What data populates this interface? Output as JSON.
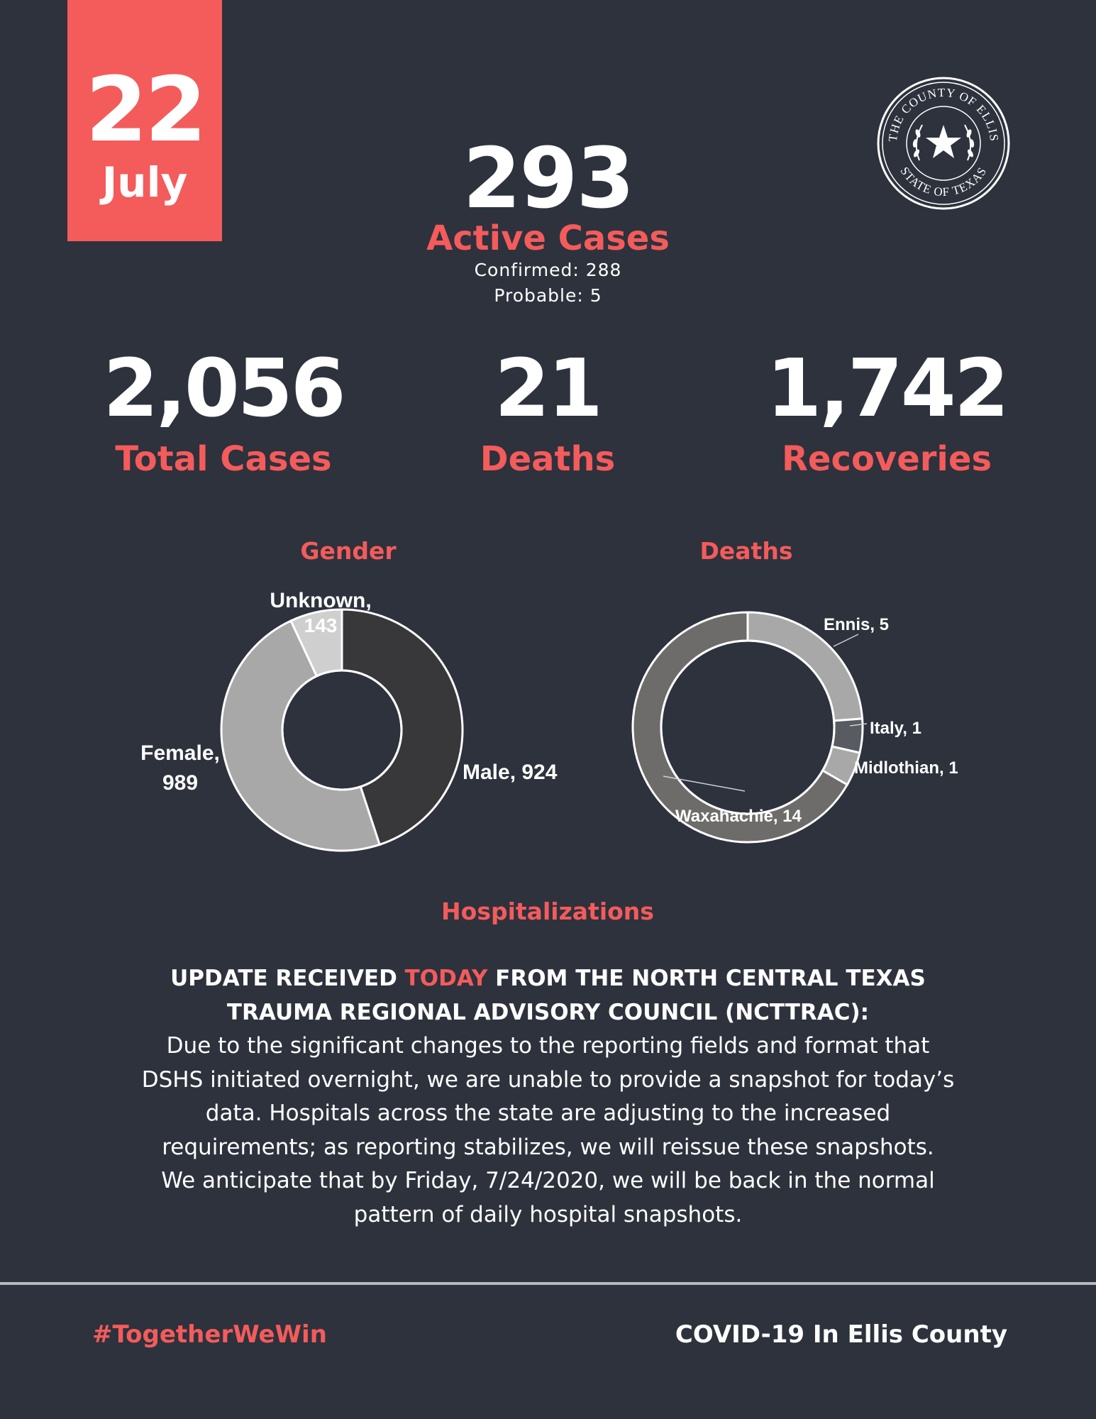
{
  "date": {
    "day": "22",
    "month": "July"
  },
  "seal": {
    "top_text": "THE COUNTY OF ELLIS",
    "bottom_text": "STATE OF TEXAS"
  },
  "active": {
    "number": "293",
    "label": "Active Cases",
    "confirmed": "Confirmed: 288",
    "probable": "Probable: 5"
  },
  "stats": [
    {
      "number": "2,056",
      "label": "Total Cases"
    },
    {
      "number": "21",
      "label": "Deaths"
    },
    {
      "number": "1,742",
      "label": "Recoveries"
    }
  ],
  "chart_data": [
    {
      "type": "pie",
      "title": "Gender",
      "categories": [
        "Male",
        "Female",
        "Unknown"
      ],
      "values": [
        924,
        989,
        143
      ],
      "labels": [
        {
          "name": "Male,",
          "value": "924",
          "text": "Male, 924"
        },
        {
          "name": "Female,",
          "value": "989"
        },
        {
          "name": "Unknown,",
          "value": "143"
        }
      ],
      "colors": [
        "#38383a",
        "#a9a8a8",
        "#cfcfd0"
      ],
      "donut": true
    },
    {
      "type": "pie",
      "title": "Deaths",
      "categories": [
        "Ennis",
        "Italy",
        "Midlothian",
        "Waxahachie"
      ],
      "values": [
        5,
        1,
        1,
        14
      ],
      "labels": [
        "Ennis, 5",
        "Italy, 1",
        "Midlothian, 1",
        "Waxahachie, 14"
      ],
      "colors": [
        "#a9a8a8",
        "#585b62",
        "#a9a8a8",
        "#6e6c6b"
      ],
      "donut": true
    }
  ],
  "hospitalizations": {
    "title": "Hospitalizations",
    "line1_a": "UPDATE RECEIVED ",
    "line1_hl": "TODAY",
    "line1_b": " FROM THE NORTH CENTRAL TEXAS",
    "line2": "TRAUMA REGIONAL ADVISORY COUNCIL (NCTTRAC):",
    "body": [
      "Due to the significant changes to the reporting fields and format that",
      "DSHS initiated overnight, we are unable to provide a snapshot for today’s",
      "data. Hospitals across the state are adjusting to the increased",
      "requirements; as reporting stabilizes, we will reissue these snapshots.",
      "We anticipate that by Friday, 7/24/2020, we will be back in the normal",
      "pattern of daily hospital snapshots."
    ]
  },
  "footer": {
    "hashtag": "#TogetherWeWin",
    "title": "COVID-19 In Ellis County"
  },
  "colors": {
    "accent": "#f45b5b",
    "background": "#2d323d"
  }
}
